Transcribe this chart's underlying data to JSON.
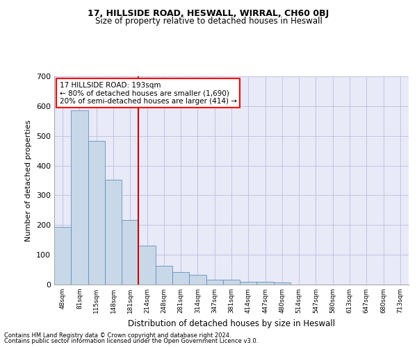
{
  "title1": "17, HILLSIDE ROAD, HESWALL, WIRRAL, CH60 0BJ",
  "title2": "Size of property relative to detached houses in Heswall",
  "xlabel": "Distribution of detached houses by size in Heswall",
  "ylabel": "Number of detached properties",
  "footer1": "Contains HM Land Registry data © Crown copyright and database right 2024.",
  "footer2": "Contains public sector information licensed under the Open Government Licence v3.0.",
  "annotation_line1": "17 HILLSIDE ROAD: 193sqm",
  "annotation_line2": "← 80% of detached houses are smaller (1,690)",
  "annotation_line3": "20% of semi-detached houses are larger (414) →",
  "bar_color": "#c8d8e8",
  "bar_edge_color": "#6090bb",
  "plot_bg_color": "#e8eaf8",
  "grid_color": "#c0c4e0",
  "marker_color": "#cc0000",
  "categories": [
    "48sqm",
    "81sqm",
    "115sqm",
    "148sqm",
    "181sqm",
    "214sqm",
    "248sqm",
    "281sqm",
    "314sqm",
    "347sqm",
    "381sqm",
    "414sqm",
    "447sqm",
    "480sqm",
    "514sqm",
    "547sqm",
    "580sqm",
    "613sqm",
    "647sqm",
    "680sqm",
    "713sqm"
  ],
  "values": [
    193,
    585,
    483,
    352,
    217,
    130,
    62,
    42,
    32,
    16,
    16,
    10,
    10,
    6,
    0,
    0,
    0,
    0,
    0,
    0,
    0
  ],
  "ylim": [
    0,
    700
  ],
  "yticks": [
    0,
    100,
    200,
    300,
    400,
    500,
    600,
    700
  ],
  "vline_x": 4.5
}
